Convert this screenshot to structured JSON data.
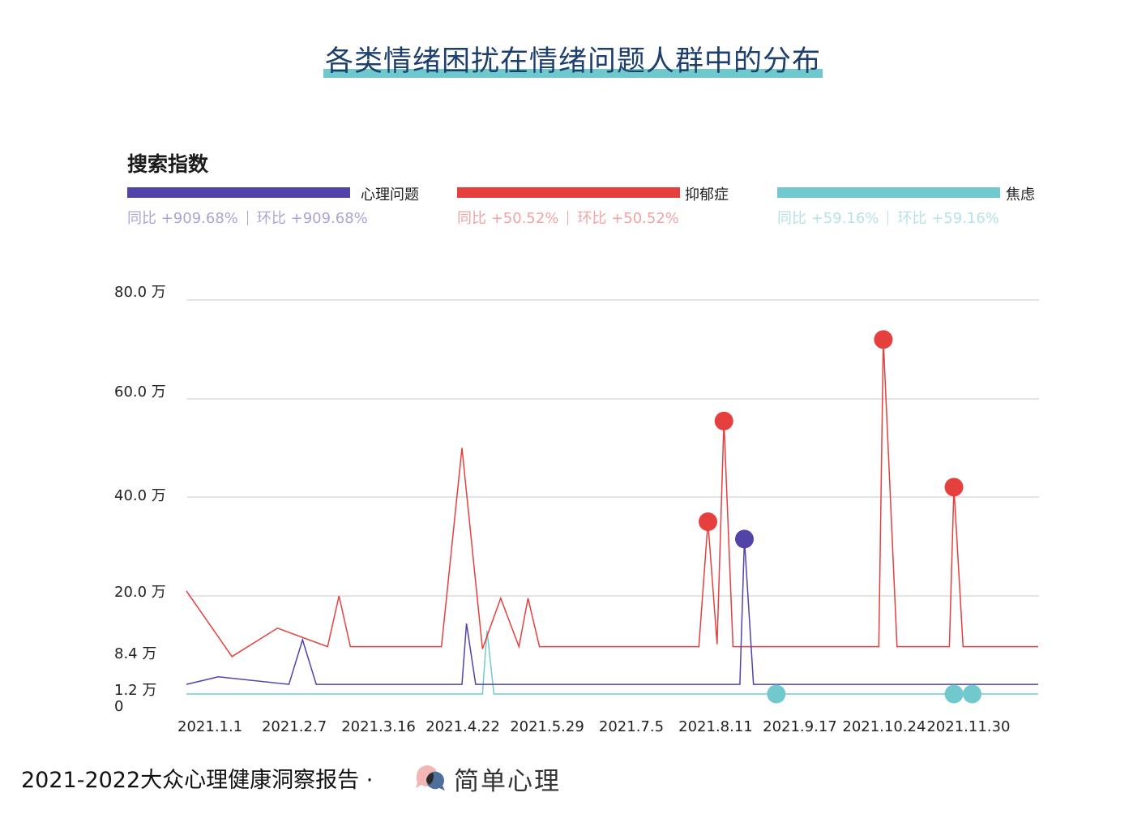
{
  "title": "各类情绪困扰在情绪问题人群中的分布",
  "subtitle": "搜索指数",
  "legend": [
    {
      "name": "心理问题",
      "color": "#5243a8",
      "stat_color": "#aaa5d6",
      "yoy": "同比 +909.68%",
      "mom": "环比 +909.68%"
    },
    {
      "name": "抑郁症",
      "color": "#e5403e",
      "stat_color": "#f2a3a2",
      "yoy": "同比 +50.52%",
      "mom": "环比 +50.52%"
    },
    {
      "name": "焦虑",
      "color": "#72c9cd",
      "stat_color": "#b5e2e4",
      "yoy": "同比 +59.16%",
      "mom": "环比 +59.16%"
    }
  ],
  "chart_data": {
    "type": "line",
    "y_tick_labels": [
      "80.0 万",
      "60.0 万",
      "40.0 万",
      "20.0 万",
      "8.4 万",
      "1.2 万",
      "0"
    ],
    "y_ticks": [
      80,
      60,
      40,
      20,
      8.4,
      1.2,
      0
    ],
    "y_gridlines": [
      80,
      60,
      40,
      20
    ],
    "x_tick_labels": [
      "2021.1.1",
      "2021.2.7",
      "2021.3.16",
      "2021.4.22",
      "2021.5.29",
      "2021.7.5",
      "2021.8.11",
      "2021.9.17",
      "2021.10.24",
      "2021.11.30"
    ],
    "x_ticks": [
      "2021-01-01",
      "2021-02-07",
      "2021-03-16",
      "2021-04-22",
      "2021-05-29",
      "2021-07-05",
      "2021-08-11",
      "2021-09-17",
      "2021-10-24",
      "2021-11-30"
    ],
    "x_range": [
      "2020-12-22",
      "2021-12-31"
    ],
    "y_unit": "万",
    "grid": true,
    "series": [
      {
        "name": "心理问题",
        "color": "#5243a8",
        "x": [
          "2020-12-22",
          "2021-01-05",
          "2021-02-05",
          "2021-02-11",
          "2021-02-17",
          "2021-04-22",
          "2021-04-24",
          "2021-04-28",
          "2021-08-22",
          "2021-08-24",
          "2021-08-28",
          "2021-12-31"
        ],
        "y": [
          1.5,
          3.0,
          1.5,
          10.5,
          1.5,
          1.5,
          14.0,
          1.5,
          1.5,
          31.5,
          1.5,
          1.5
        ],
        "highlight": [
          {
            "x": "2021-08-24",
            "y": 31.5
          }
        ]
      },
      {
        "name": "抑郁症",
        "color": "#e5403e",
        "x": [
          "2020-12-22",
          "2021-01-11",
          "2021-01-31",
          "2021-02-22",
          "2021-02-27",
          "2021-03-04",
          "2021-04-13",
          "2021-04-22",
          "2021-05-01",
          "2021-05-09",
          "2021-05-17",
          "2021-05-21",
          "2021-05-26",
          "2021-08-04",
          "2021-08-08",
          "2021-08-12",
          "2021-08-15",
          "2021-08-19",
          "2021-10-22",
          "2021-10-24",
          "2021-10-30",
          "2021-11-22",
          "2021-11-24",
          "2021-11-28",
          "2021-12-31"
        ],
        "y": [
          21.0,
          7.0,
          13.0,
          9.0,
          20.0,
          9.0,
          9.0,
          50.0,
          8.5,
          19.5,
          9.0,
          19.5,
          9.0,
          9.0,
          35.0,
          9.5,
          55.5,
          9.0,
          9.0,
          72.0,
          9.0,
          9.0,
          42.0,
          9.0,
          9.0
        ],
        "highlight": [
          {
            "x": "2021-08-08",
            "y": 35.0
          },
          {
            "x": "2021-08-15",
            "y": 55.5
          },
          {
            "x": "2021-10-24",
            "y": 72.0
          },
          {
            "x": "2021-11-24",
            "y": 42.0
          }
        ]
      },
      {
        "name": "焦虑",
        "color": "#72c9cd",
        "x": [
          "2020-12-22",
          "2021-05-01",
          "2021-05-03",
          "2021-05-06",
          "2021-12-31"
        ],
        "y": [
          0,
          0,
          12.5,
          0,
          0
        ],
        "highlight": [
          {
            "x": "2021-09-07",
            "y": 0
          },
          {
            "x": "2021-11-24",
            "y": 0
          },
          {
            "x": "2021-12-02",
            "y": 0
          }
        ]
      }
    ]
  },
  "footer": {
    "text": "2021-2022大众心理健康洞察报告 ·",
    "brand": "简单心理",
    "logo_icon": "chat-bubbles-logo-icon"
  }
}
